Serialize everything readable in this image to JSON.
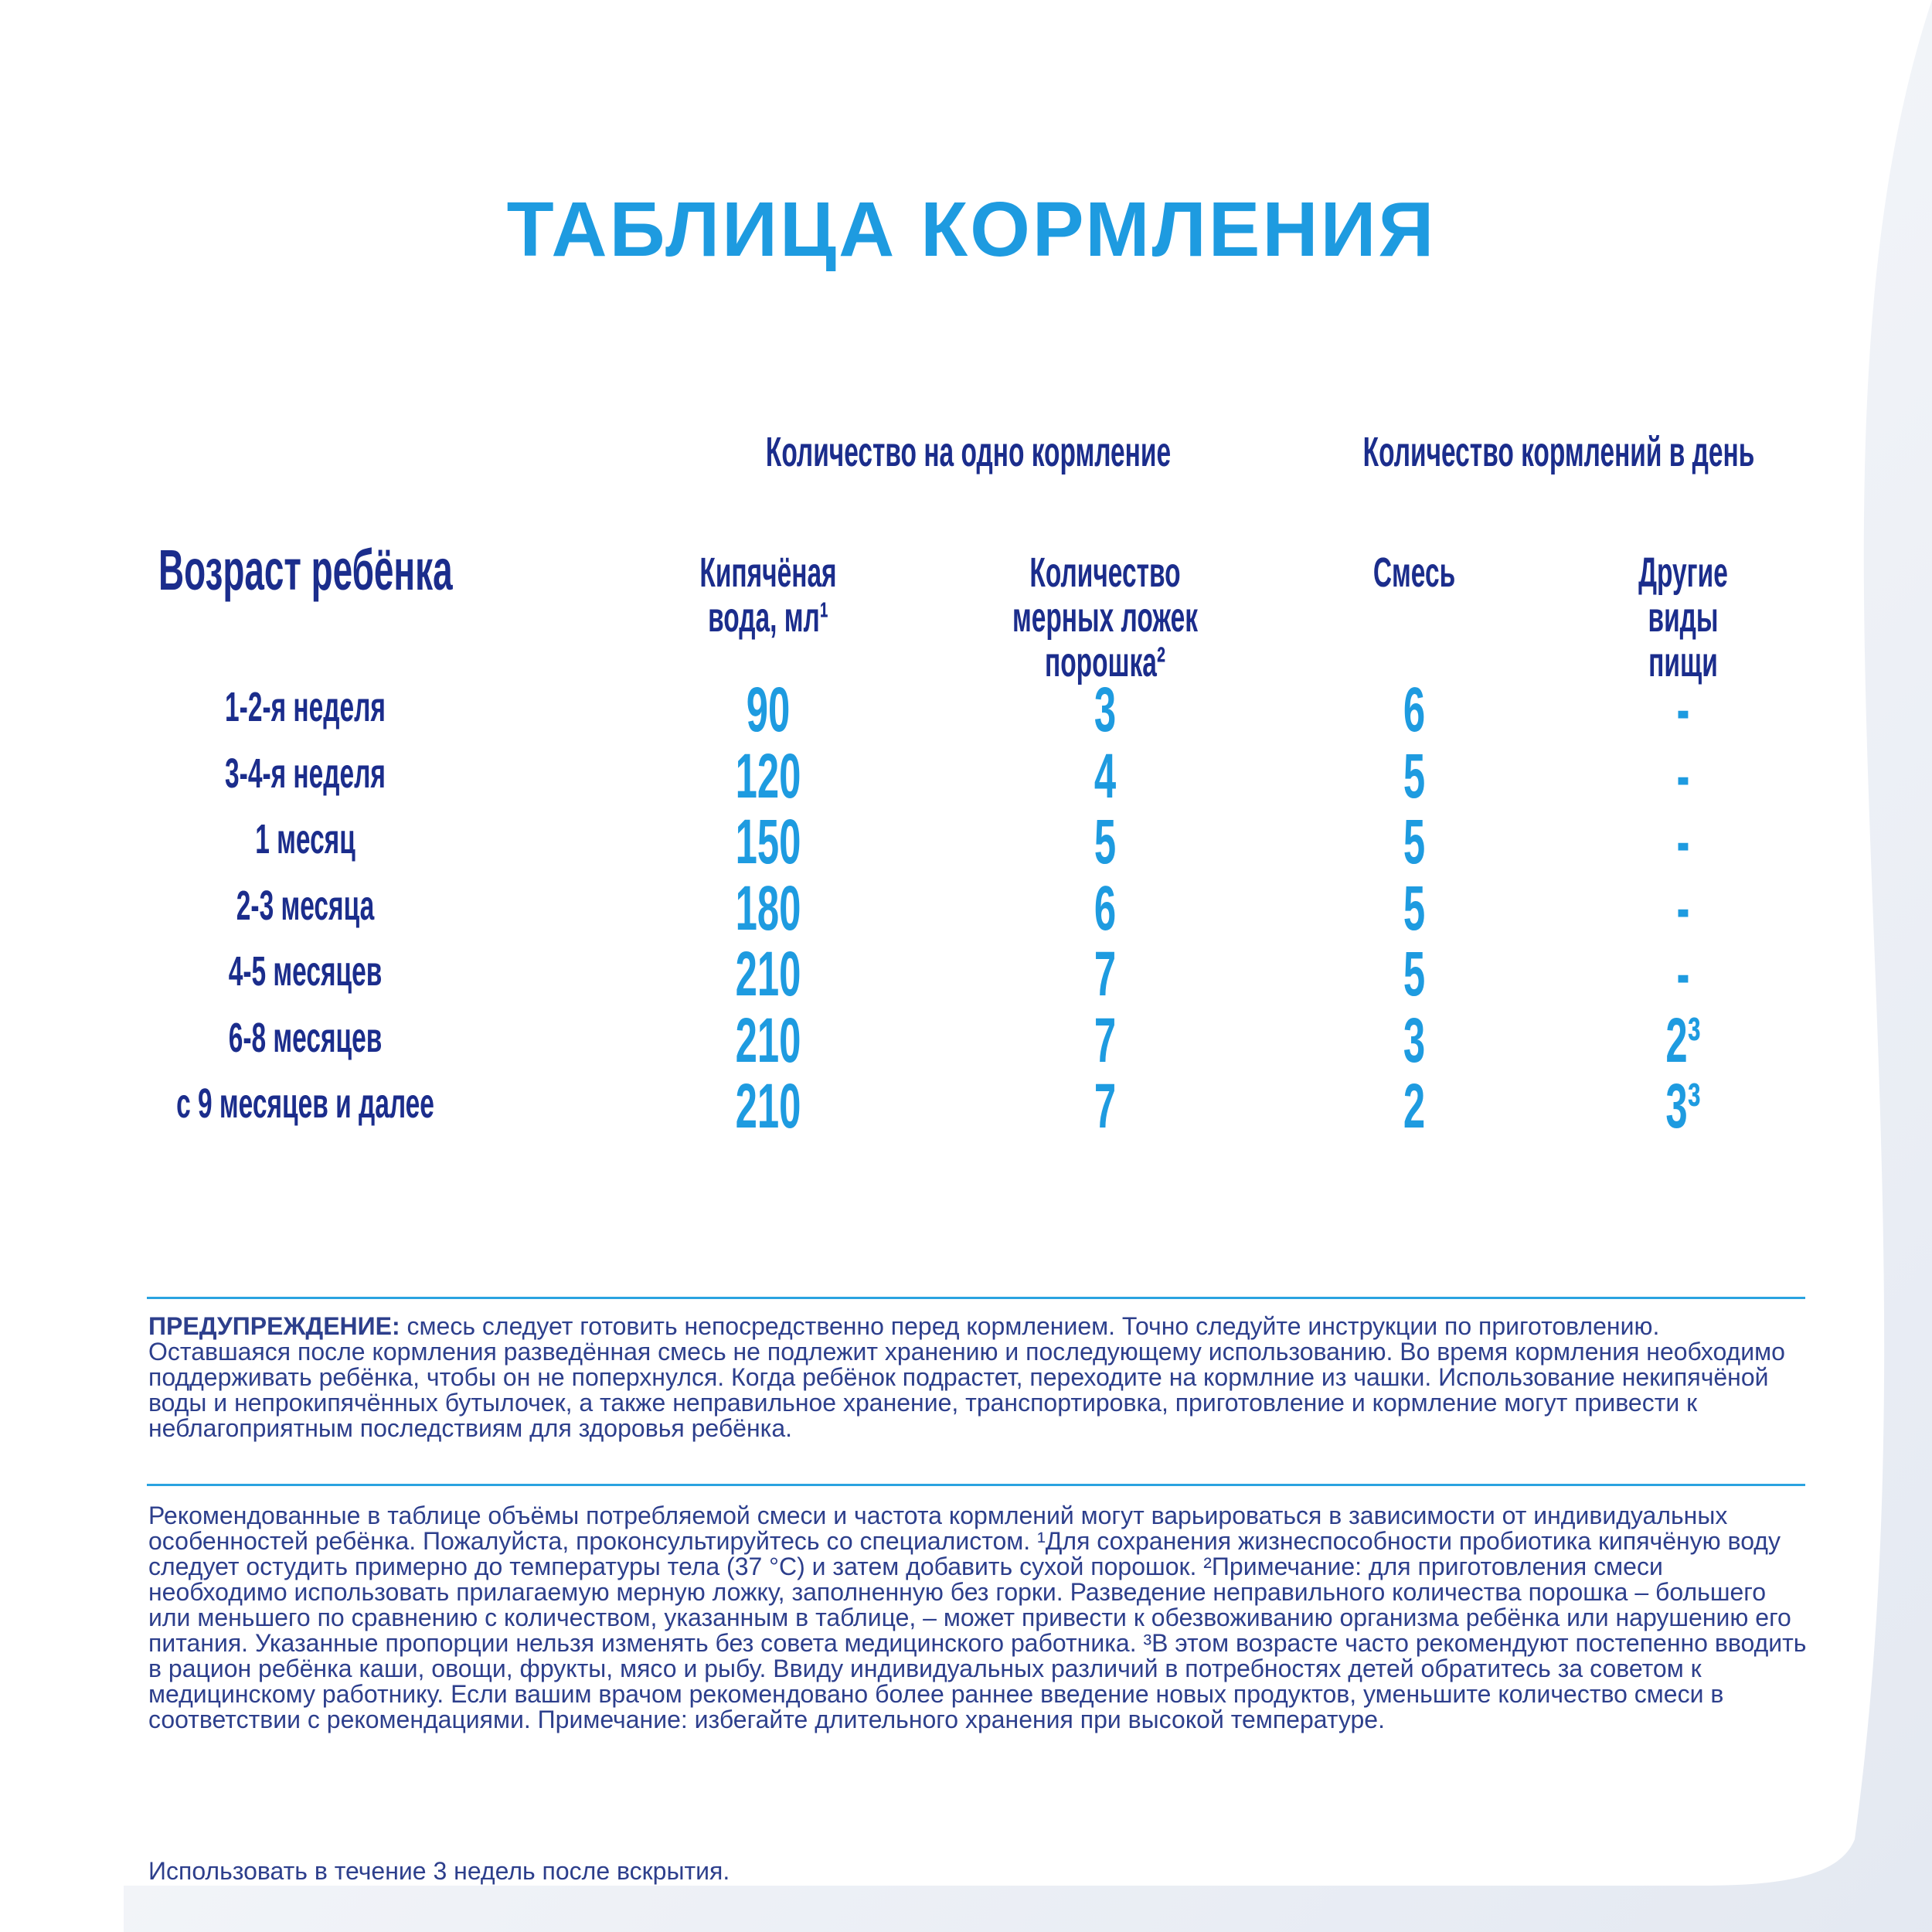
{
  "header": {
    "title": "ТАБЛИЦА КОРМЛЕНИЯ"
  },
  "table": {
    "group_headers": [
      "Количество на одно кормление",
      "Количество кормлений в день"
    ],
    "columns": [
      "Возраст ребёнка",
      "Кипячёная вода, мл¹",
      "Количество мерных ложек порошка²",
      "Смесь",
      "Другие виды пищи"
    ],
    "rows": [
      [
        "1-2-я неделя",
        90,
        3,
        6,
        "-"
      ],
      [
        "3-4-я неделя",
        120,
        4,
        5,
        "-"
      ],
      [
        "1 месяц",
        150,
        5,
        5,
        "-"
      ],
      [
        "2-3 месяца",
        180,
        6,
        5,
        "-"
      ],
      [
        "4-5 месяцев",
        210,
        7,
        5,
        "-"
      ],
      [
        "6-8 месяцев",
        210,
        7,
        3,
        "2³"
      ],
      [
        "с 9 месяцев и далее",
        210,
        7,
        2,
        "3³"
      ]
    ]
  },
  "warning": {
    "label": "ПРЕДУПРЕЖДЕНИЕ:",
    "text": "смесь следует готовить непосредственно перед кормлением. Точно следуйте инструкции по приготовлению. Оставшаяся после кормления разведённая смесь не подлежит хранению и последующему использованию. Во время кормления необходимо поддерживать ребёнка, чтобы он не поперхнулся. Когда ребёнок подрастет, переходите на кормлние из чашки. Использование некипячёной воды и непрокипячённых бутылочек, а также неправильное хранение, транспортировка, приготовление и кормление могут привести к неблагоприятным последствиям для здоровья ребёнка."
  },
  "note": "Рекомендованные в таблице объёмы потребляемой смеси и частота кормлений могут варьироваться в зависимости от индивидуальных особенностей ребёнка. Пожалуйста, проконсультируйтесь со специалистом. ¹Для сохранения жизнеспособности пробиотика кипячёную воду следует остудить примерно до температуры тела (37 °С) и затем добавить сухой порошок. ²Примечание: для приготовления смеси необходимо использовать прилагаемую мерную ложку, заполненную без горки. Разведение неправильного количества порошка – большего или меньшего по сравнению с количеством, указанным в таблице, – может привести к обезвоживанию организма ребёнка или нарушению его питания. Указанные пропорции нельзя изменять без совета медицинского работника. ³В этом возрасте часто рекомендуют постепенно вводить в рацион ребёнка каши, овощи, фрукты, мясо и рыбу. Ввиду индивидуальных различий в потребностях детей обратитесь за советом к медицинскому работнику. Если вашим врачом рекомендовано более раннее введение новых продуктов, уменьшите количество смеси в соответствии с рекомендациями. Примечание: избегайте длительного хранения при высокой температуре.",
  "footer": "Использовать в течение 3 недель после вскрытия."
}
